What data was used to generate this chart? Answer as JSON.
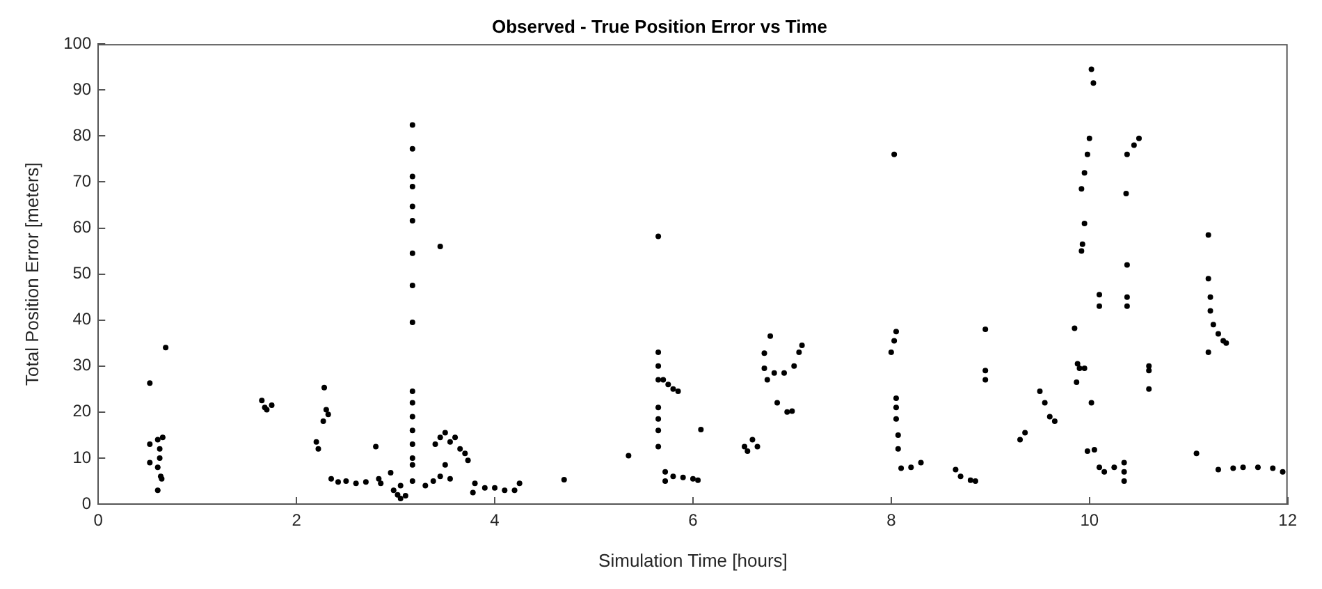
{
  "chart_data": {
    "type": "scatter",
    "title": "Observed - True Position Error vs Time",
    "xlabel": "Simulation Time [hours]",
    "ylabel": "Total Position Error [meters]",
    "xlim": [
      0,
      12
    ],
    "xticks": [
      0,
      2,
      4,
      6,
      8,
      10,
      12
    ],
    "ylim": [
      0,
      100
    ],
    "yticks": [
      0,
      10,
      20,
      30,
      40,
      50,
      60,
      70,
      80,
      90,
      100
    ],
    "grid": false,
    "legend": false,
    "marker": "circle",
    "series": [
      {
        "color": "#000000",
        "x": [
          0.52,
          0.52,
          0.52,
          0.6,
          0.62,
          0.62,
          0.6,
          0.63,
          0.6,
          0.65,
          0.68,
          0.64,
          1.65,
          1.68,
          1.7,
          1.75,
          2.2,
          2.22,
          2.28,
          2.3,
          2.27,
          2.32,
          2.35,
          2.42,
          2.5,
          2.6,
          2.7,
          2.8,
          2.85,
          2.83,
          2.95,
          2.98,
          3.02,
          3.05,
          3.1,
          3.05,
          3.17,
          3.17,
          3.17,
          3.17,
          3.17,
          3.17,
          3.17,
          3.17,
          3.17,
          3.17,
          3.17,
          3.17,
          3.17,
          3.17,
          3.17,
          3.17,
          3.17,
          3.45,
          3.4,
          3.45,
          3.5,
          3.55,
          3.6,
          3.65,
          3.7,
          3.73,
          3.3,
          3.38,
          3.45,
          3.5,
          3.55,
          3.78,
          3.8,
          3.9,
          4.0,
          4.1,
          4.2,
          4.25,
          4.7,
          5.35,
          5.65,
          5.65,
          5.65,
          5.65,
          5.65,
          5.65,
          5.65,
          5.65,
          5.7,
          5.75,
          5.8,
          5.85,
          5.72,
          5.72,
          5.8,
          5.9,
          6.0,
          6.05,
          6.08,
          6.52,
          6.6,
          6.65,
          6.55,
          6.78,
          6.72,
          6.72,
          6.75,
          6.82,
          6.92,
          6.85,
          6.95,
          7.0,
          7.02,
          7.07,
          7.1,
          8.03,
          8.05,
          8.03,
          8.0,
          8.05,
          8.05,
          8.05,
          8.07,
          8.07,
          8.1,
          8.2,
          8.3,
          8.65,
          8.7,
          8.8,
          8.85,
          8.95,
          8.95,
          8.95,
          9.35,
          9.3,
          9.5,
          9.55,
          9.6,
          9.65,
          9.85,
          9.88,
          9.9,
          9.95,
          9.87,
          9.95,
          9.93,
          9.92,
          9.92,
          9.95,
          9.98,
          10.0,
          10.02,
          10.04,
          10.02,
          9.98,
          10.05,
          10.1,
          10.1,
          10.1,
          10.15,
          10.25,
          10.35,
          10.35,
          10.35,
          10.37,
          10.38,
          10.38,
          10.38,
          10.38,
          10.45,
          10.5,
          10.6,
          10.6,
          10.6,
          11.08,
          11.2,
          11.2,
          11.22,
          11.22,
          11.25,
          11.3,
          11.35,
          11.38,
          11.2,
          11.3,
          11.45,
          11.55,
          11.7,
          11.85,
          11.95
        ],
        "values": [
          26.3,
          13,
          9,
          14,
          12,
          10,
          8,
          6,
          3,
          14.5,
          34,
          5.5,
          22.5,
          21,
          20.5,
          21.5,
          13.5,
          12,
          25.3,
          20.5,
          18,
          19.5,
          5.5,
          4.8,
          5,
          4.5,
          4.8,
          12.5,
          4.5,
          5.5,
          6.8,
          3,
          2,
          1.2,
          1.8,
          4,
          82.4,
          77.2,
          71.2,
          69,
          64.7,
          61.6,
          54.5,
          47.5,
          39.5,
          24.5,
          22,
          19,
          16,
          13,
          10,
          8.5,
          5,
          56,
          13,
          14.5,
          15.5,
          13.5,
          14.5,
          12,
          11,
          9.5,
          4,
          5,
          6,
          8.5,
          5.5,
          2.5,
          4.5,
          3.5,
          3.5,
          3,
          3,
          4.5,
          5.3,
          10.5,
          58.2,
          33,
          30,
          27,
          21,
          18.5,
          16,
          12.5,
          27,
          26,
          25,
          24.5,
          7,
          5,
          6,
          5.8,
          5.5,
          5.2,
          16.2,
          12.5,
          14,
          12.5,
          11.5,
          36.5,
          32.8,
          29.5,
          27,
          28.5,
          28.5,
          22,
          20,
          20.2,
          30,
          33,
          34.5,
          76,
          37.5,
          35.5,
          33,
          23,
          21,
          18.5,
          15,
          12,
          7.8,
          8,
          9,
          7.5,
          6,
          5.2,
          5,
          38,
          29,
          27,
          15.5,
          14,
          24.5,
          22,
          19,
          18,
          38.2,
          30.5,
          29.5,
          29.5,
          26.5,
          61,
          56.5,
          55,
          68.5,
          72,
          76,
          79.5,
          94.5,
          91.5,
          22,
          11.5,
          11.8,
          45.5,
          43,
          8,
          7,
          8,
          9,
          7,
          5,
          67.5,
          52,
          45,
          43,
          76,
          78,
          79.5,
          30,
          29,
          25,
          11,
          58.5,
          49,
          45,
          42,
          39,
          37,
          35.5,
          35,
          33,
          7.5,
          7.8,
          8,
          8,
          7.8,
          7
        ]
      }
    ]
  }
}
